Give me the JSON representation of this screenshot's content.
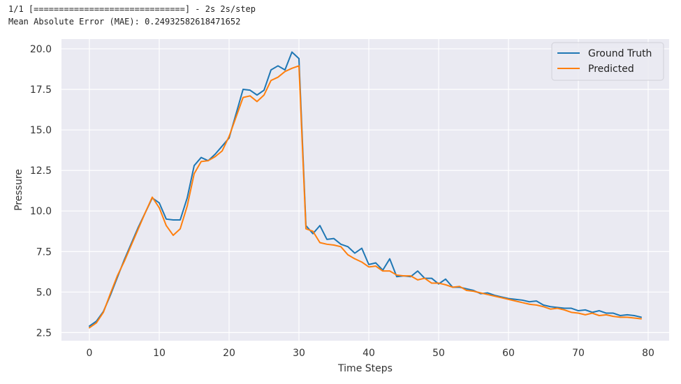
{
  "console": {
    "progress_line": "1/1 [==============================] - 2s 2s/step",
    "mae_line": "Mean Absolute Error (MAE): 0.24932582618471652"
  },
  "colors": {
    "plot_background": "#eaeaf2",
    "grid": "#ffffff",
    "ground_truth": "#1f77b4",
    "predicted": "#ff7f0e"
  },
  "chart_data": {
    "type": "line",
    "title": "",
    "xlabel": "Time Steps",
    "ylabel": "Pressure",
    "xlim": [
      -4,
      83
    ],
    "ylim": [
      2.0,
      20.6
    ],
    "grid": true,
    "legend_position": "top-right",
    "x_ticks": [
      0,
      10,
      20,
      30,
      40,
      50,
      60,
      70,
      80
    ],
    "y_ticks": [
      2.5,
      5.0,
      7.5,
      10.0,
      12.5,
      15.0,
      17.5,
      20.0
    ],
    "y_tick_labels": [
      "2.5",
      "5.0",
      "7.5",
      "10.0",
      "12.5",
      "15.0",
      "17.5",
      "20.0"
    ],
    "series": [
      {
        "name": "Ground Truth",
        "color": "#1f77b4",
        "values": [
          2.9,
          3.2,
          3.8,
          4.8,
          5.9,
          7.0,
          8.0,
          9.0,
          9.9,
          10.8,
          10.5,
          9.5,
          9.45,
          9.45,
          10.8,
          12.8,
          13.3,
          13.1,
          13.5,
          14.0,
          14.5,
          16.0,
          17.5,
          17.45,
          17.15,
          17.45,
          18.7,
          18.95,
          18.7,
          19.8,
          19.4,
          9.1,
          8.6,
          9.1,
          8.25,
          8.3,
          7.95,
          7.8,
          7.4,
          7.7,
          6.7,
          6.8,
          6.35,
          7.05,
          5.95,
          6.0,
          5.95,
          6.3,
          5.85,
          5.85,
          5.5,
          5.8,
          5.3,
          5.3,
          5.2,
          5.1,
          4.9,
          4.95,
          4.8,
          4.7,
          4.6,
          4.55,
          4.5,
          4.4,
          4.45,
          4.2,
          4.1,
          4.05,
          4.0,
          4.0,
          3.85,
          3.9,
          3.75,
          3.85,
          3.7,
          3.7,
          3.55,
          3.6,
          3.55,
          3.45
        ]
      },
      {
        "name": "Predicted",
        "color": "#ff7f0e",
        "values": [
          2.8,
          3.1,
          3.75,
          4.9,
          6.0,
          6.9,
          7.9,
          8.9,
          9.9,
          10.85,
          10.2,
          9.1,
          8.5,
          8.9,
          10.3,
          12.3,
          13.05,
          13.1,
          13.35,
          13.7,
          14.6,
          15.8,
          17.0,
          17.1,
          16.75,
          17.15,
          18.05,
          18.25,
          18.6,
          18.8,
          18.95,
          8.9,
          8.75,
          8.05,
          7.95,
          7.9,
          7.8,
          7.3,
          7.05,
          6.85,
          6.55,
          6.6,
          6.3,
          6.3,
          6.05,
          6.0,
          6.0,
          5.75,
          5.85,
          5.55,
          5.55,
          5.45,
          5.3,
          5.35,
          5.1,
          5.05,
          4.95,
          4.85,
          4.75,
          4.65,
          4.55,
          4.45,
          4.35,
          4.25,
          4.2,
          4.1,
          3.95,
          4.0,
          3.9,
          3.75,
          3.7,
          3.6,
          3.7,
          3.55,
          3.6,
          3.5,
          3.45,
          3.45,
          3.4,
          3.35
        ]
      }
    ]
  }
}
